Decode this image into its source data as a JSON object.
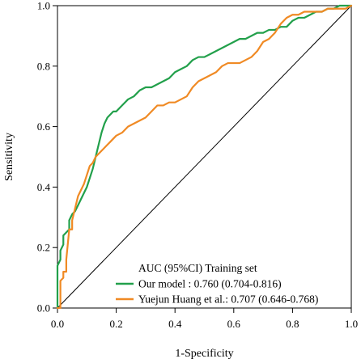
{
  "chart_data": {
    "type": "line",
    "title": "",
    "xlabel": "1-Specificity",
    "ylabel": "Sensitivity",
    "xlim": [
      0,
      1
    ],
    "ylim": [
      0,
      1
    ],
    "x_ticks": [
      "0.0",
      "0.2",
      "0.4",
      "0.6",
      "0.8",
      "1.0"
    ],
    "y_ticks": [
      "0.0",
      "0.2",
      "0.4",
      "0.6",
      "0.8",
      "1.0"
    ],
    "grid": false,
    "legend": {
      "placement": "bottom-right",
      "title": "AUC (95%CI) Training set"
    },
    "reference_line": {
      "x": [
        0,
        1
      ],
      "y": [
        0,
        1
      ],
      "color": "#000000"
    },
    "series": [
      {
        "name": "Our model : 0.760 (0.704-0.816)",
        "color": "#22a04b",
        "x": [
          0,
          0,
          0.01,
          0.01,
          0.02,
          0.02,
          0.03,
          0.04,
          0.04,
          0.05,
          0.06,
          0.07,
          0.08,
          0.09,
          0.1,
          0.11,
          0.12,
          0.13,
          0.14,
          0.15,
          0.16,
          0.17,
          0.18,
          0.19,
          0.2,
          0.22,
          0.24,
          0.26,
          0.28,
          0.3,
          0.32,
          0.34,
          0.36,
          0.38,
          0.4,
          0.42,
          0.44,
          0.46,
          0.48,
          0.5,
          0.52,
          0.54,
          0.56,
          0.58,
          0.6,
          0.62,
          0.64,
          0.66,
          0.68,
          0.7,
          0.72,
          0.74,
          0.76,
          0.78,
          0.8,
          0.82,
          0.84,
          0.86,
          0.88,
          0.9,
          0.92,
          0.94,
          0.96,
          0.98,
          1
        ],
        "y": [
          0,
          0.14,
          0.16,
          0.19,
          0.21,
          0.24,
          0.25,
          0.26,
          0.29,
          0.31,
          0.32,
          0.34,
          0.36,
          0.38,
          0.4,
          0.43,
          0.46,
          0.5,
          0.54,
          0.58,
          0.61,
          0.63,
          0.64,
          0.65,
          0.65,
          0.67,
          0.69,
          0.7,
          0.72,
          0.73,
          0.73,
          0.74,
          0.75,
          0.76,
          0.78,
          0.79,
          0.8,
          0.82,
          0.83,
          0.83,
          0.84,
          0.85,
          0.86,
          0.87,
          0.88,
          0.89,
          0.89,
          0.9,
          0.91,
          0.91,
          0.92,
          0.92,
          0.93,
          0.93,
          0.95,
          0.96,
          0.96,
          0.97,
          0.98,
          0.98,
          0.99,
          0.99,
          1,
          1,
          1
        ]
      },
      {
        "name": "Yuejun Huang et al.: 0.707 (0.646-0.768)",
        "color": "#f08a24",
        "x": [
          0,
          0.01,
          0.01,
          0.02,
          0.02,
          0.03,
          0.03,
          0.04,
          0.05,
          0.05,
          0.06,
          0.07,
          0.08,
          0.09,
          0.1,
          0.11,
          0.12,
          0.13,
          0.14,
          0.15,
          0.16,
          0.17,
          0.18,
          0.2,
          0.22,
          0.24,
          0.26,
          0.28,
          0.3,
          0.32,
          0.34,
          0.36,
          0.38,
          0.4,
          0.42,
          0.44,
          0.46,
          0.48,
          0.5,
          0.52,
          0.54,
          0.56,
          0.58,
          0.6,
          0.62,
          0.64,
          0.66,
          0.68,
          0.7,
          0.72,
          0.74,
          0.76,
          0.78,
          0.8,
          0.82,
          0.84,
          0.86,
          0.88,
          0.9,
          0.92,
          0.94,
          0.96,
          0.98,
          1
        ],
        "y": [
          0,
          0,
          0.09,
          0.1,
          0.12,
          0.12,
          0.16,
          0.26,
          0.26,
          0.29,
          0.33,
          0.37,
          0.39,
          0.41,
          0.44,
          0.47,
          0.48,
          0.5,
          0.51,
          0.52,
          0.53,
          0.54,
          0.55,
          0.57,
          0.58,
          0.6,
          0.61,
          0.62,
          0.63,
          0.65,
          0.67,
          0.67,
          0.68,
          0.68,
          0.69,
          0.7,
          0.73,
          0.75,
          0.76,
          0.77,
          0.78,
          0.8,
          0.81,
          0.81,
          0.81,
          0.82,
          0.83,
          0.85,
          0.88,
          0.89,
          0.91,
          0.94,
          0.96,
          0.97,
          0.97,
          0.98,
          0.98,
          0.98,
          0.98,
          0.99,
          0.99,
          0.99,
          0.99,
          1
        ]
      }
    ]
  }
}
